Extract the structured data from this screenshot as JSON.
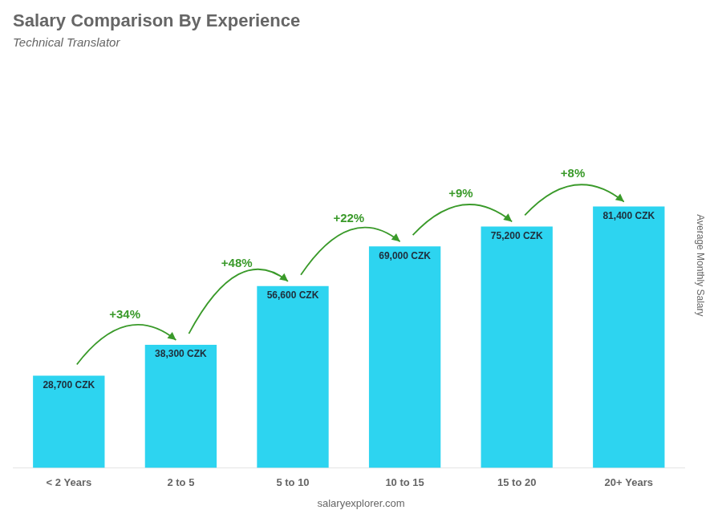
{
  "chart_data": {
    "type": "bar",
    "title": "Salary Comparison By Experience",
    "subtitle": "Technical Translator",
    "ylabel": "Average Monthly Salary",
    "categories": [
      "< 2 Years",
      "2 to 5",
      "5 to 10",
      "10 to 15",
      "15 to 20",
      "20+ Years"
    ],
    "values": [
      28700,
      38300,
      56600,
      69000,
      75200,
      81400
    ],
    "value_labels": [
      "28,700 CZK",
      "38,300 CZK",
      "56,600 CZK",
      "69,000 CZK",
      "75,200 CZK",
      "81,400 CZK"
    ],
    "data_labels": true,
    "annotations": [
      "+34%",
      "+48%",
      "+22%",
      "+9%",
      "+8%"
    ],
    "watermark": "salaryexplorer.com",
    "color": "#2DD4F0",
    "ylim": [
      0,
      126170
    ],
    "grid": false,
    "tick_labels": "x"
  }
}
